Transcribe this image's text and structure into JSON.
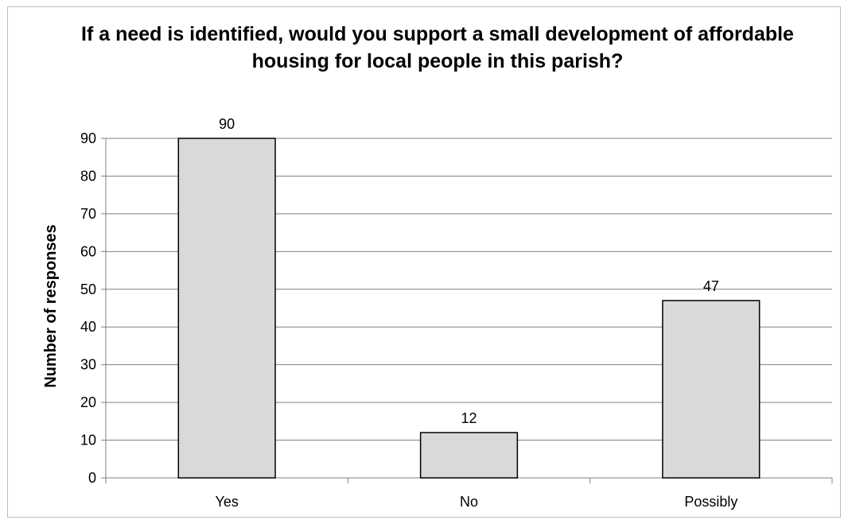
{
  "chart_data": {
    "type": "bar",
    "title": "If a need is identified, would you support a small development of affordable housing for local people in this parish?",
    "categories": [
      "Yes",
      "No",
      "Possibly"
    ],
    "values": [
      90,
      12,
      47
    ],
    "ylabel": "Number of responses",
    "xlabel": "",
    "ylim": [
      0,
      90
    ],
    "yticks": [
      0,
      10,
      20,
      30,
      40,
      50,
      60,
      70,
      80,
      90
    ],
    "grid": true,
    "legend": "none",
    "colors": {
      "bar_fill": "#d9d9d9",
      "bar_stroke": "#000000",
      "grid": "#808080",
      "axis": "#808080"
    }
  }
}
